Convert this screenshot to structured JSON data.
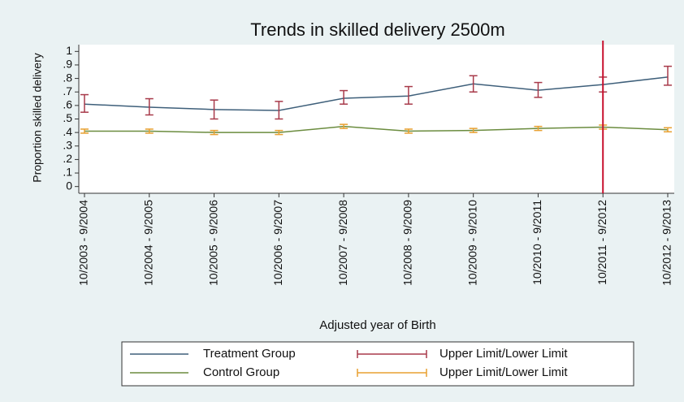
{
  "chart_data": {
    "type": "line",
    "title": "Trends in skilled delivery 2500m",
    "xlabel": "Adjusted year of Birth",
    "ylabel": "Proportion skilled delivery",
    "categories": [
      "10/2003 - 9/2004",
      "10/2004 - 9/2005",
      "10/2005 - 9/2006",
      "10/2006 - 9/2007",
      "10/2007 - 9/2008",
      "10/2008 - 9/2009",
      "10/2009 - 9/2010",
      "10/2010 - 9/2011",
      "10/2011 - 9/2012",
      "10/2012 - 9/2013"
    ],
    "series": [
      {
        "name": "Treatment Group",
        "color": "#3e5f7a",
        "values": [
          0.61,
          0.587,
          0.57,
          0.563,
          0.653,
          0.67,
          0.76,
          0.713,
          0.755,
          0.81
        ]
      },
      {
        "name": "Control Group",
        "color": "#6b8c3f",
        "values": [
          0.41,
          0.41,
          0.4,
          0.4,
          0.445,
          0.41,
          0.415,
          0.43,
          0.44,
          0.42
        ]
      }
    ],
    "intervals": [
      {
        "name": "Upper Limit/Lower Limit",
        "color": "#a83a4a",
        "lower": [
          0.55,
          0.53,
          0.5,
          0.5,
          0.61,
          0.61,
          0.7,
          0.66,
          0.7,
          0.75
        ],
        "upper": [
          0.68,
          0.65,
          0.64,
          0.63,
          0.71,
          0.74,
          0.82,
          0.77,
          0.81,
          0.89
        ]
      },
      {
        "name": "Upper Limit/Lower Limit",
        "color": "#e8a030",
        "lower": [
          0.395,
          0.395,
          0.385,
          0.385,
          0.43,
          0.395,
          0.4,
          0.415,
          0.425,
          0.405
        ],
        "upper": [
          0.425,
          0.425,
          0.415,
          0.415,
          0.46,
          0.425,
          0.43,
          0.445,
          0.455,
          0.435
        ]
      }
    ],
    "xline": "10/2011 - 9/2012",
    "xline_color": "#c8102e",
    "ylim": [
      -0.05,
      1.05
    ],
    "yticks": [
      0,
      {
        "value": 0.1,
        "label": ".1"
      },
      {
        "value": 0.2,
        "label": ".2"
      },
      {
        "value": 0.3,
        "label": ".3"
      },
      {
        "value": 0.4,
        "label": ".4"
      },
      {
        "value": 0.5,
        "label": ".5"
      },
      {
        "value": 0.6,
        "label": ".6"
      },
      {
        "value": 0.7,
        "label": ".7"
      },
      {
        "value": 0.8,
        "label": ".8"
      },
      {
        "value": 0.9,
        "label": ".9"
      },
      1
    ]
  }
}
